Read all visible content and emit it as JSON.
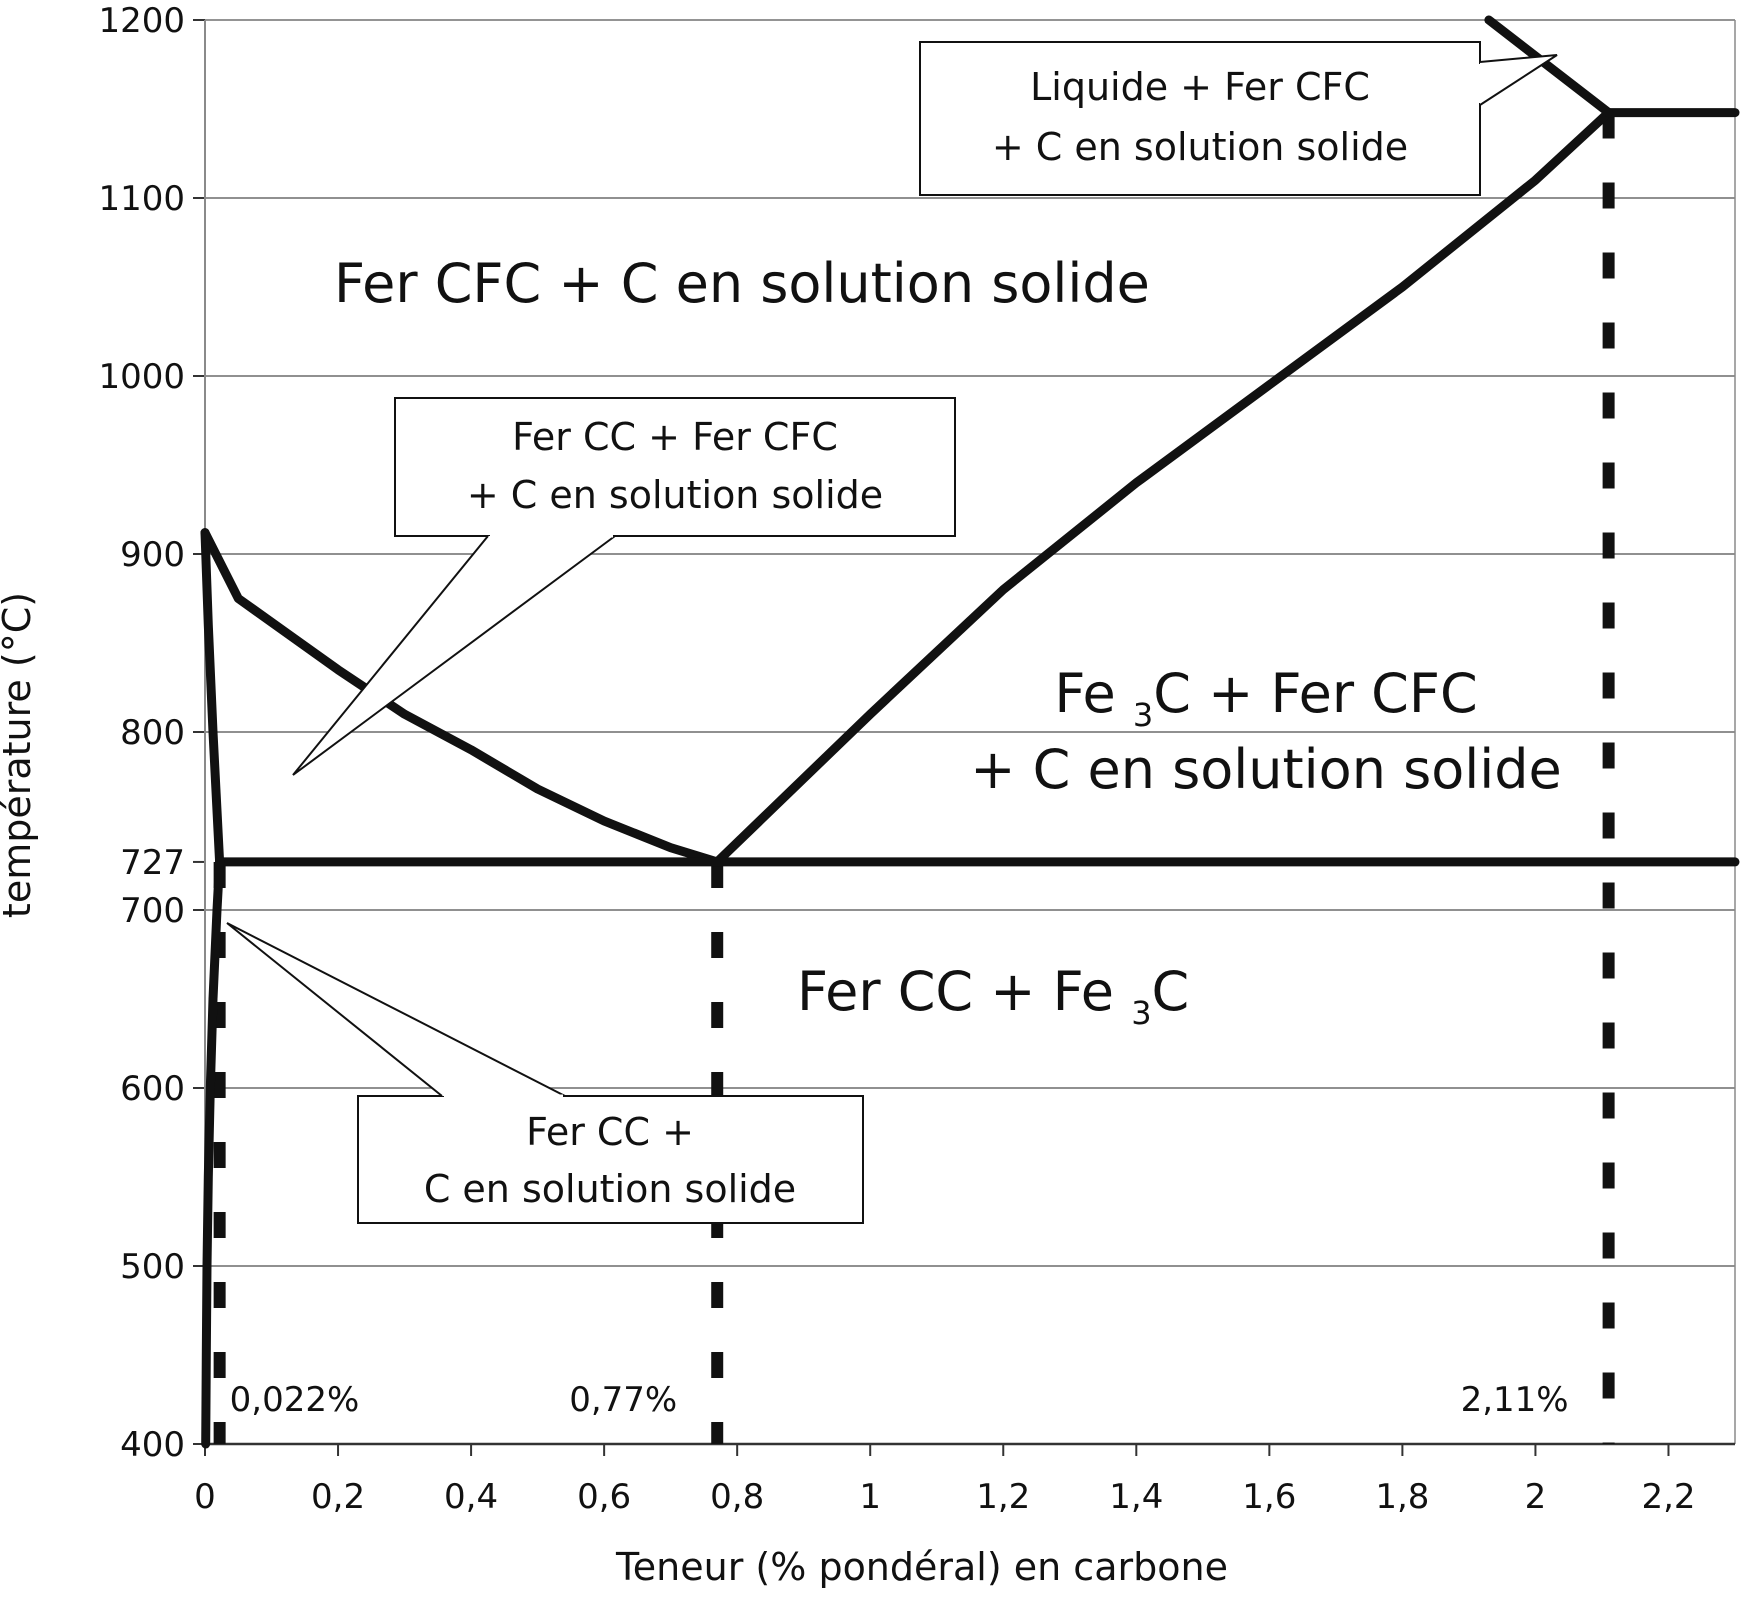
{
  "chart_data": {
    "type": "line",
    "title": "",
    "xlabel": "Teneur (% pondéral) en carbone",
    "ylabel": "température (°C)",
    "xlim": [
      0,
      2.3
    ],
    "ylim": [
      400,
      1200
    ],
    "x_ticks": [
      "0",
      "0,2",
      "0,4",
      "0,6",
      "0,8",
      "1",
      "1,2",
      "1,4",
      "1,6",
      "1,8",
      "2",
      "2,2"
    ],
    "x_tick_values": [
      0,
      0.2,
      0.4,
      0.6,
      0.8,
      1,
      1.2,
      1.4,
      1.6,
      1.8,
      2,
      2.2
    ],
    "y_ticks": [
      "400",
      "500",
      "600",
      "700",
      "727",
      "800",
      "900",
      "1000",
      "1100",
      "1200"
    ],
    "y_tick_values": [
      400,
      500,
      600,
      700,
      727,
      800,
      900,
      1000,
      1100,
      1200
    ],
    "grid": true,
    "series": [
      {
        "points": [
          [
            0,
            912
          ],
          [
            0.05,
            875
          ],
          [
            0.2,
            835
          ],
          [
            0.3,
            810
          ],
          [
            0.4,
            790
          ],
          [
            0.5,
            768
          ],
          [
            0.6,
            750
          ],
          [
            0.7,
            735
          ],
          [
            0.77,
            727
          ]
        ]
      },
      {
        "points": [
          [
            0.77,
            727
          ],
          [
            1.0,
            810
          ],
          [
            1.2,
            880
          ],
          [
            1.4,
            940
          ],
          [
            1.6,
            995
          ],
          [
            1.8,
            1050
          ],
          [
            2.0,
            1110
          ],
          [
            2.11,
            1148
          ]
        ]
      },
      {
        "points": [
          [
            0.022,
            727
          ],
          [
            2.3,
            727
          ]
        ]
      },
      {
        "points": [
          [
            2.11,
            1148
          ],
          [
            2.3,
            1148
          ]
        ]
      },
      {
        "points": [
          [
            1.93,
            1200
          ],
          [
            2.11,
            1148
          ]
        ]
      },
      {
        "points": [
          [
            0,
            912
          ],
          [
            0.005,
            860
          ],
          [
            0.012,
            800
          ],
          [
            0.022,
            727
          ]
        ]
      },
      {
        "points": [
          [
            0.022,
            727
          ],
          [
            0.018,
            700
          ],
          [
            0.012,
            650
          ],
          [
            0.008,
            600
          ],
          [
            0.005,
            550
          ],
          [
            0.003,
            500
          ],
          [
            0.002,
            450
          ],
          [
            0.001,
            400
          ]
        ]
      }
    ],
    "vertical_markers": [
      {
        "x": 0.022,
        "label": "0,022%",
        "from": 400,
        "to": 727
      },
      {
        "x": 0.77,
        "label": "0,77%",
        "from": 400,
        "to": 727
      },
      {
        "x": 2.11,
        "label": "2,11%",
        "from": 400,
        "to": 1148
      }
    ],
    "regions": [
      {
        "lines": [
          "Fer CFC + C en solution solide"
        ]
      },
      {
        "lines": [
          "Fe 3C + Fer CFC",
          "+ C en solution solide"
        ]
      },
      {
        "lines": [
          "Fer CC + Fe 3C"
        ]
      }
    ],
    "callouts": [
      {
        "lines": [
          "Liquide + Fer CFC",
          "+ C en solution solide"
        ]
      },
      {
        "lines": [
          "Fer CC +  Fer CFC",
          "+ C en solution solide"
        ]
      },
      {
        "lines": [
          "Fer CC +",
          "C en solution solide"
        ]
      }
    ]
  }
}
